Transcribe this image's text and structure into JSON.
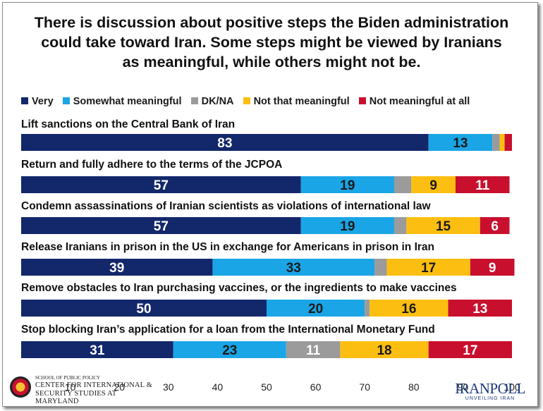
{
  "chart_data": {
    "type": "bar",
    "orientation": "horizontal",
    "stacked": true,
    "title": "There is discussion about positive steps the Biden administration could take toward Iran. Some steps might be viewed by Iranians as meaningful, while others might not be.",
    "title_lines": [
      "There is discussion about positive steps the Biden administration",
      "could take toward Iran. Some steps might be viewed by Iranians",
      "as meaningful, while others might not be."
    ],
    "legend_position": "top",
    "categories": [
      "Lift sanctions on the Central Bank of Iran",
      "Return and fully adhere to the terms of the JCPOA",
      "Condemn assassinations of Iranian scientists as violations of international law",
      "Release Iranians in prison in the US in exchange for Americans in prison in Iran",
      "Remove obstacles to Iran purchasing vaccines, or the ingredients to make vaccines",
      "Stop blocking Iran’s application for a loan from the International Monetary Fund"
    ],
    "series": [
      {
        "name": "Very",
        "color": "#13276b",
        "values": [
          83,
          57,
          57,
          39,
          50,
          31
        ],
        "labels": [
          "83",
          "57",
          "57",
          "39",
          "50",
          "31"
        ]
      },
      {
        "name": "Somewhat meaningful",
        "color": "#1aa5e6",
        "values": [
          13,
          19,
          19,
          33,
          20,
          23
        ],
        "labels": [
          "13",
          "19",
          "19",
          "33",
          "20",
          "23"
        ]
      },
      {
        "name": "DK/NA",
        "color": "#9b9b9b",
        "values": [
          1.5,
          3.5,
          2.5,
          2.5,
          1,
          11
        ],
        "labels": [
          "",
          "",
          "",
          "",
          "",
          "11"
        ]
      },
      {
        "name": "Not that meaningful",
        "color": "#fcbe10",
        "values": [
          1,
          9,
          15,
          17,
          16,
          18
        ],
        "labels": [
          "",
          "9",
          "15",
          "17",
          "16",
          "18"
        ]
      },
      {
        "name": "Not meaningful at all",
        "color": "#c8102e",
        "values": [
          1.5,
          11,
          6,
          9,
          13,
          17
        ],
        "labels": [
          "",
          "11",
          "6",
          "9",
          "13",
          "17"
        ]
      }
    ],
    "xlim": [
      0,
      100
    ],
    "xticks": [
      "10",
      "20",
      "30",
      "40",
      "50",
      "60",
      "70",
      "80",
      "90",
      "100"
    ],
    "grid": false
  },
  "footer": {
    "left_logo_line1": "SCHOOL OF PUBLIC POLICY",
    "left_logo_line2": "CENTER FOR INTERNATIONAL &",
    "left_logo_line3": "SECURITY STUDIES AT MARYLAND",
    "right_logo_brand": "IRANPOLL",
    "right_logo_tag": "UNVEILING IRAN"
  }
}
